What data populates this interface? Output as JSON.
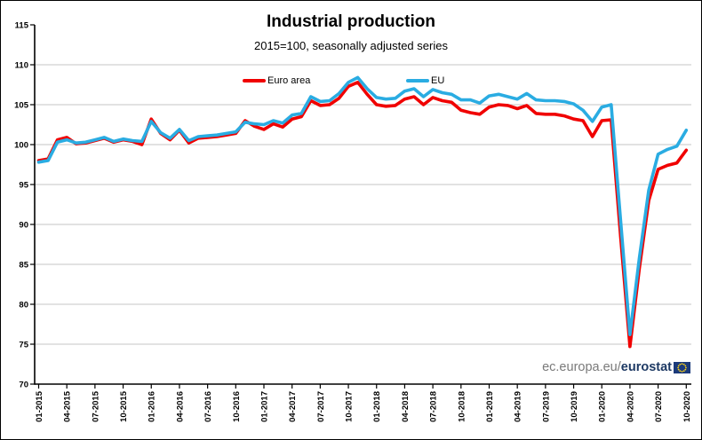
{
  "header": {
    "title": "Industrial production",
    "subtitle": "2015=100, seasonally adjusted series"
  },
  "legend": {
    "items": [
      {
        "label": "Euro area",
        "color": "#f00000"
      },
      {
        "label": "EU",
        "color": "#2aace2"
      }
    ]
  },
  "footer": {
    "site_prefix": "ec.europa.eu/",
    "site_bold": "eurostat"
  },
  "chart_data": {
    "type": "line",
    "title": "Industrial production",
    "subtitle": "2015=100, seasonally adjusted series",
    "x": [
      "01-2015",
      "02-2015",
      "03-2015",
      "04-2015",
      "05-2015",
      "06-2015",
      "07-2015",
      "08-2015",
      "09-2015",
      "10-2015",
      "11-2015",
      "12-2015",
      "01-2016",
      "02-2016",
      "03-2016",
      "04-2016",
      "05-2016",
      "06-2016",
      "07-2016",
      "08-2016",
      "09-2016",
      "10-2016",
      "11-2016",
      "12-2016",
      "01-2017",
      "02-2017",
      "03-2017",
      "04-2017",
      "05-2017",
      "06-2017",
      "07-2017",
      "08-2017",
      "09-2017",
      "10-2017",
      "11-2017",
      "12-2017",
      "01-2018",
      "02-2018",
      "03-2018",
      "04-2018",
      "05-2018",
      "06-2018",
      "07-2018",
      "08-2018",
      "09-2018",
      "10-2018",
      "11-2018",
      "12-2018",
      "01-2019",
      "02-2019",
      "03-2019",
      "04-2019",
      "05-2019",
      "06-2019",
      "07-2019",
      "08-2019",
      "09-2019",
      "10-2019",
      "11-2019",
      "12-2019",
      "01-2020",
      "02-2020",
      "03-2020",
      "04-2020",
      "05-2020",
      "06-2020",
      "07-2020",
      "08-2020",
      "09-2020",
      "10-2020"
    ],
    "x_tick_every": 3,
    "ylim": [
      70,
      115
    ],
    "ytick_step": 5,
    "grid": true,
    "grid_color": "#c6c6c6",
    "axis_color": "#000000",
    "legend_position": "top-inside",
    "series": [
      {
        "name": "Euro area",
        "color": "#f00000",
        "values": [
          98.0,
          98.2,
          100.6,
          100.9,
          100.1,
          100.2,
          100.5,
          100.8,
          100.3,
          100.6,
          100.4,
          100.0,
          103.2,
          101.4,
          100.6,
          101.8,
          100.2,
          100.8,
          100.9,
          101.0,
          101.2,
          101.4,
          103.0,
          102.3,
          101.9,
          102.6,
          102.2,
          103.2,
          103.5,
          105.5,
          104.9,
          105.0,
          105.8,
          107.3,
          107.8,
          106.3,
          105.0,
          104.8,
          104.9,
          105.7,
          106.0,
          105.0,
          105.9,
          105.5,
          105.3,
          104.3,
          104.0,
          103.8,
          104.7,
          105.0,
          104.9,
          104.5,
          104.9,
          103.9,
          103.8,
          103.8,
          103.6,
          103.2,
          103.0,
          101.0,
          103.0,
          103.1,
          88.5,
          74.7,
          84.5,
          93.0,
          96.9,
          97.4,
          97.7,
          99.3
        ]
      },
      {
        "name": "EU",
        "color": "#2aace2",
        "values": [
          97.8,
          98.0,
          100.3,
          100.6,
          100.2,
          100.3,
          100.6,
          100.9,
          100.4,
          100.7,
          100.5,
          100.4,
          102.9,
          101.5,
          100.8,
          101.9,
          100.5,
          101.0,
          101.1,
          101.2,
          101.4,
          101.6,
          102.8,
          102.6,
          102.5,
          103.0,
          102.7,
          103.7,
          103.9,
          106.0,
          105.4,
          105.5,
          106.4,
          107.8,
          108.4,
          107.0,
          105.9,
          105.7,
          105.8,
          106.7,
          107.0,
          106.0,
          106.9,
          106.5,
          106.3,
          105.6,
          105.6,
          105.2,
          106.1,
          106.3,
          106.0,
          105.7,
          106.4,
          105.6,
          105.5,
          105.5,
          105.4,
          105.1,
          104.3,
          102.9,
          104.7,
          105.0,
          90.5,
          76.2,
          85.8,
          94.3,
          98.8,
          99.4,
          99.8,
          101.8
        ]
      }
    ]
  }
}
